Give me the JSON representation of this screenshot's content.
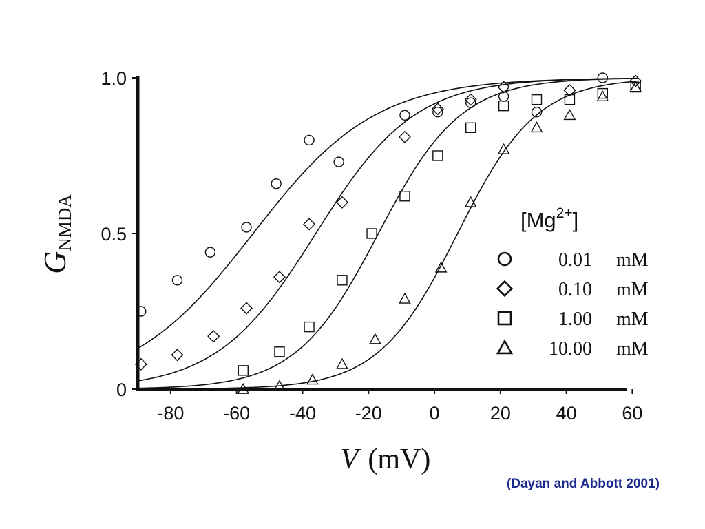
{
  "chart_data": {
    "type": "scatter",
    "xlabel": {
      "var": "V",
      "unit": "(mV)"
    },
    "ylabel": {
      "var": "G",
      "sub": "NMDA"
    },
    "xlim": [
      -90,
      62
    ],
    "ylim": [
      0,
      1.0
    ],
    "xticks": [
      -80,
      -60,
      -40,
      -20,
      0,
      20,
      40,
      60
    ],
    "yticks": [
      {
        "value": 0,
        "label": "0"
      },
      {
        "value": 0.5,
        "label": "0.5"
      },
      {
        "value": 1.0,
        "label": "1.0"
      }
    ],
    "legend": {
      "title": "[Mg",
      "title_sup": "2+",
      "title_end": "]",
      "placement": "right",
      "unit": "mM"
    },
    "series": [
      {
        "name": "0.01",
        "marker": "circle",
        "fit": {
          "v_half": -55,
          "k": 18.5
        },
        "points": [
          [
            -89,
            0.25
          ],
          [
            -78,
            0.35
          ],
          [
            -68,
            0.44
          ],
          [
            -57,
            0.52
          ],
          [
            -48,
            0.66
          ],
          [
            -38,
            0.8
          ],
          [
            -29,
            0.73
          ],
          [
            -9,
            0.88
          ],
          [
            1,
            0.89
          ],
          [
            11,
            0.92
          ],
          [
            21,
            0.94
          ],
          [
            31,
            0.89
          ],
          [
            51,
            1.0
          ]
        ]
      },
      {
        "name": "0.10",
        "marker": "diamond",
        "fit": {
          "v_half": -36,
          "k": 15
        },
        "points": [
          [
            -89,
            0.08
          ],
          [
            -78,
            0.11
          ],
          [
            -67,
            0.17
          ],
          [
            -57,
            0.26
          ],
          [
            -47,
            0.36
          ],
          [
            -38,
            0.53
          ],
          [
            -28,
            0.6
          ],
          [
            -9,
            0.81
          ],
          [
            1,
            0.9
          ],
          [
            11,
            0.93
          ],
          [
            21,
            0.97
          ],
          [
            41,
            0.96
          ],
          [
            61,
            0.99
          ]
        ]
      },
      {
        "name": "1.00",
        "marker": "square",
        "fit": {
          "v_half": -17,
          "k": 12.5
        },
        "points": [
          [
            -58,
            0.06
          ],
          [
            -47,
            0.12
          ],
          [
            -38,
            0.2
          ],
          [
            -28,
            0.35
          ],
          [
            -19,
            0.5
          ],
          [
            -9,
            0.62
          ],
          [
            1,
            0.75
          ],
          [
            11,
            0.84
          ],
          [
            21,
            0.91
          ],
          [
            31,
            0.93
          ],
          [
            41,
            0.93
          ],
          [
            51,
            0.95
          ],
          [
            61,
            0.97
          ]
        ]
      },
      {
        "name": "10.00",
        "marker": "triangle",
        "fit": {
          "v_half": 7,
          "k": 12
        },
        "points": [
          [
            -58,
            0.0
          ],
          [
            -47,
            0.01
          ],
          [
            -37,
            0.03
          ],
          [
            -28,
            0.08
          ],
          [
            -18,
            0.16
          ],
          [
            -9,
            0.29
          ],
          [
            2,
            0.39
          ],
          [
            11,
            0.6
          ],
          [
            21,
            0.77
          ],
          [
            31,
            0.84
          ],
          [
            41,
            0.88
          ],
          [
            51,
            0.94
          ],
          [
            61,
            0.97
          ]
        ]
      }
    ]
  },
  "citation": "(Dayan and Abbott 2001)"
}
